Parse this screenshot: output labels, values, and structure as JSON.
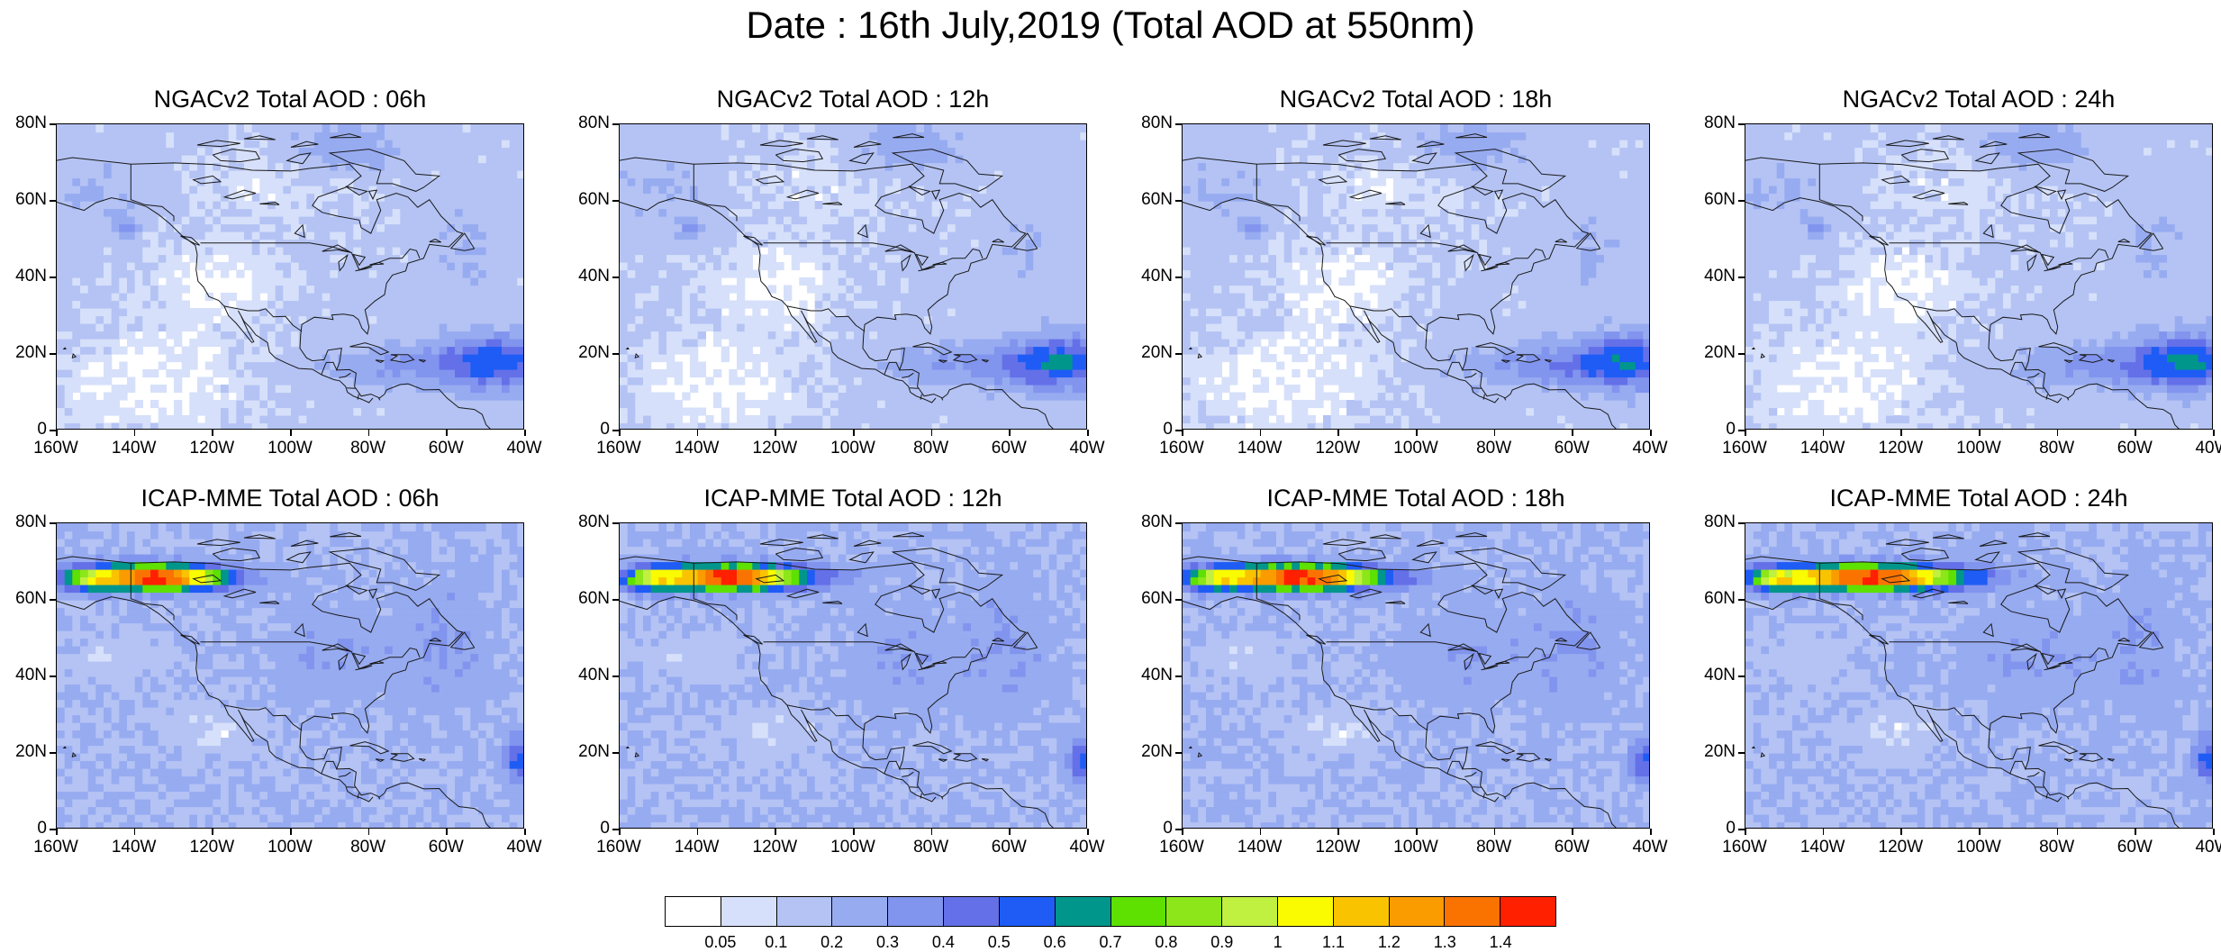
{
  "title": "Date : 16th July,2019 (Total AOD at 550nm)",
  "lat_labels": [
    "80N",
    "60N",
    "40N",
    "20N",
    "0"
  ],
  "lon_labels": [
    "160W",
    "140W",
    "120W",
    "100W",
    "80W",
    "60W",
    "40W"
  ],
  "panels": [
    {
      "title": "NGACv2 Total AOD : 06h",
      "model": "NGACv2",
      "forecast_hour": "06h"
    },
    {
      "title": "NGACv2 Total AOD : 12h",
      "model": "NGACv2",
      "forecast_hour": "12h"
    },
    {
      "title": "NGACv2 Total AOD : 18h",
      "model": "NGACv2",
      "forecast_hour": "18h"
    },
    {
      "title": "NGACv2 Total AOD : 24h",
      "model": "NGACv2",
      "forecast_hour": "24h"
    },
    {
      "title": "ICAP-MME Total AOD : 06h",
      "model": "ICAP-MME",
      "forecast_hour": "06h"
    },
    {
      "title": "ICAP-MME Total AOD : 12h",
      "model": "ICAP-MME",
      "forecast_hour": "12h"
    },
    {
      "title": "ICAP-MME Total AOD : 18h",
      "model": "ICAP-MME",
      "forecast_hour": "18h"
    },
    {
      "title": "ICAP-MME Total AOD : 24h",
      "model": "ICAP-MME",
      "forecast_hour": "24h"
    }
  ],
  "colorbar": {
    "labels": [
      "0.05",
      "0.1",
      "0.2",
      "0.3",
      "0.4",
      "0.5",
      "0.6",
      "0.7",
      "0.8",
      "0.9",
      "1",
      "1.1",
      "1.2",
      "1.3",
      "1.4"
    ],
    "colors": [
      "#ffffff",
      "#d6e0fa",
      "#b4c3f4",
      "#97abf1",
      "#8194ee",
      "#6470e8",
      "#1e5cf5",
      "#00968c",
      "#5ee000",
      "#8ce619",
      "#c0f040",
      "#fafa00",
      "#fac300",
      "#fa9b00",
      "#fa7300",
      "#ff2000"
    ]
  }
}
